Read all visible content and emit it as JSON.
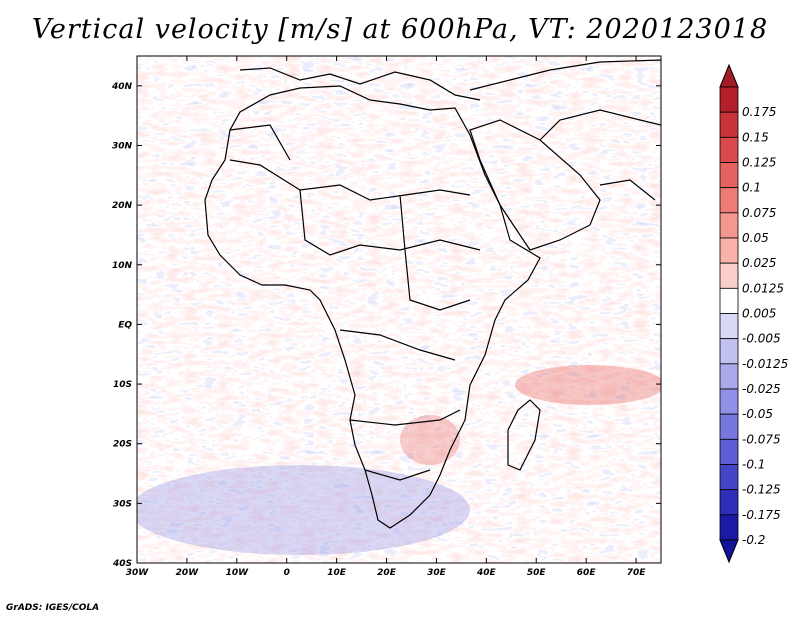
{
  "title": "Vertical velocity [m/s] at 600hPa, VT: 2020123018",
  "credit": "GrADS: IGES/COLA",
  "map": {
    "lon_range": [
      -30,
      75
    ],
    "lat_range": [
      -40,
      45
    ],
    "lon_ticks": [
      {
        "lon": -30,
        "label": "30W"
      },
      {
        "lon": -20,
        "label": "20W"
      },
      {
        "lon": -10,
        "label": "10W"
      },
      {
        "lon": 0,
        "label": "0"
      },
      {
        "lon": 10,
        "label": "10E"
      },
      {
        "lon": 20,
        "label": "20E"
      },
      {
        "lon": 30,
        "label": "30E"
      },
      {
        "lon": 40,
        "label": "40E"
      },
      {
        "lon": 50,
        "label": "50E"
      },
      {
        "lon": 60,
        "label": "60E"
      },
      {
        "lon": 70,
        "label": "70E"
      }
    ],
    "lat_ticks": [
      {
        "lat": 40,
        "label": "40N"
      },
      {
        "lat": 30,
        "label": "30N"
      },
      {
        "lat": 20,
        "label": "20N"
      },
      {
        "lat": 10,
        "label": "10N"
      },
      {
        "lat": 0,
        "label": "EQ"
      },
      {
        "lat": -10,
        "label": "10S"
      },
      {
        "lat": -20,
        "label": "20S"
      },
      {
        "lat": -30,
        "label": "30S"
      },
      {
        "lat": -40,
        "label": "40S"
      }
    ]
  },
  "colorbar": {
    "unit": "m/s",
    "bins": [
      {
        "label": "0.175",
        "color": "#b3202a"
      },
      {
        "label": "0.15",
        "color": "#c83438"
      },
      {
        "label": "0.125",
        "color": "#d94b4b"
      },
      {
        "label": "0.1",
        "color": "#e5635f"
      },
      {
        "label": "0.075",
        "color": "#ee7c76"
      },
      {
        "label": "0.05",
        "color": "#f4978f"
      },
      {
        "label": "0.025",
        "color": "#f8b2aa"
      },
      {
        "label": "0.0125",
        "color": "#fbcfc9"
      },
      {
        "label": "0.005",
        "color": "#ffffff"
      },
      {
        "label": "-0.005",
        "color": "#d9d9f6"
      },
      {
        "label": "-0.0125",
        "color": "#c2c2f1"
      },
      {
        "label": "-0.025",
        "color": "#a9a9ec"
      },
      {
        "label": "-0.05",
        "color": "#9090e6"
      },
      {
        "label": "-0.075",
        "color": "#7777de"
      },
      {
        "label": "-0.1",
        "color": "#5d5dd4"
      },
      {
        "label": "-0.125",
        "color": "#4545c8"
      },
      {
        "label": "-0.175",
        "color": "#2e2eb8"
      },
      {
        "label": "-0.2",
        "color": "#1a1aa5"
      }
    ],
    "top_triangle_color": "#a31c26",
    "bottom_triangle_color": "#12129a"
  }
}
